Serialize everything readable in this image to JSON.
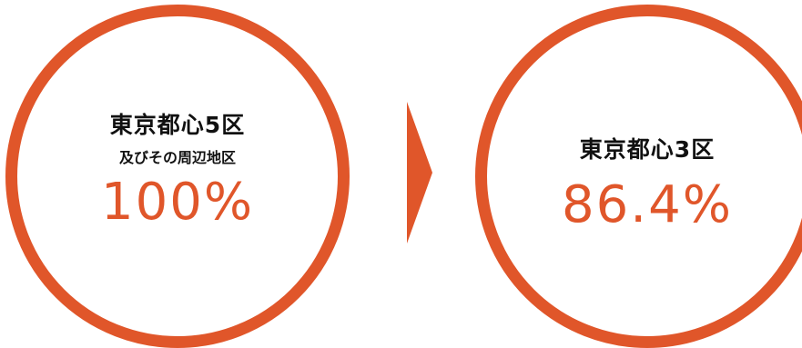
{
  "left": {
    "title": "東京都心5区",
    "subtitle": "及びその周辺地区",
    "value": "100%"
  },
  "right": {
    "title": "東京都心3区",
    "value": "86.4%"
  },
  "colors": {
    "accent": "#e0562a",
    "text": "#111111",
    "background": "#ffffff"
  },
  "icons": {
    "arrow": "arrow-right-icon"
  }
}
